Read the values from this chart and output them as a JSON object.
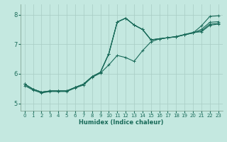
{
  "xlabel": "Humidex (Indice chaleur)",
  "xlim": [
    -0.5,
    23.5
  ],
  "ylim": [
    4.75,
    8.35
  ],
  "yticks": [
    5,
    6,
    7,
    8
  ],
  "xticks": [
    0,
    1,
    2,
    3,
    4,
    5,
    6,
    7,
    8,
    9,
    10,
    11,
    12,
    13,
    14,
    15,
    16,
    17,
    18,
    19,
    20,
    21,
    22,
    23
  ],
  "bg_color": "#c4e8e0",
  "line_color": "#1a6b5a",
  "grid_color": "#a8ccc4",
  "lines": [
    [
      5.65,
      5.48,
      5.38,
      5.42,
      5.42,
      5.42,
      5.54,
      5.65,
      5.9,
      6.05,
      6.68,
      7.75,
      7.88,
      7.65,
      7.5,
      7.15,
      7.18,
      7.22,
      7.25,
      7.32,
      7.38,
      7.62,
      7.94,
      7.96
    ],
    [
      5.65,
      5.48,
      5.38,
      5.42,
      5.42,
      5.42,
      5.54,
      5.65,
      5.9,
      6.05,
      6.68,
      7.75,
      7.88,
      7.65,
      7.5,
      7.15,
      7.18,
      7.22,
      7.25,
      7.32,
      7.38,
      7.5,
      7.74,
      7.76
    ],
    [
      5.65,
      5.48,
      5.38,
      5.42,
      5.42,
      5.42,
      5.54,
      5.65,
      5.9,
      6.05,
      6.68,
      7.75,
      7.88,
      7.65,
      7.5,
      7.15,
      7.18,
      7.22,
      7.25,
      7.32,
      7.38,
      7.45,
      7.68,
      7.7
    ],
    [
      5.6,
      5.45,
      5.35,
      5.4,
      5.4,
      5.4,
      5.52,
      5.62,
      5.88,
      6.02,
      6.3,
      6.62,
      6.55,
      6.42,
      6.78,
      7.08,
      7.18,
      7.22,
      7.26,
      7.33,
      7.4,
      7.42,
      7.64,
      7.68
    ]
  ]
}
